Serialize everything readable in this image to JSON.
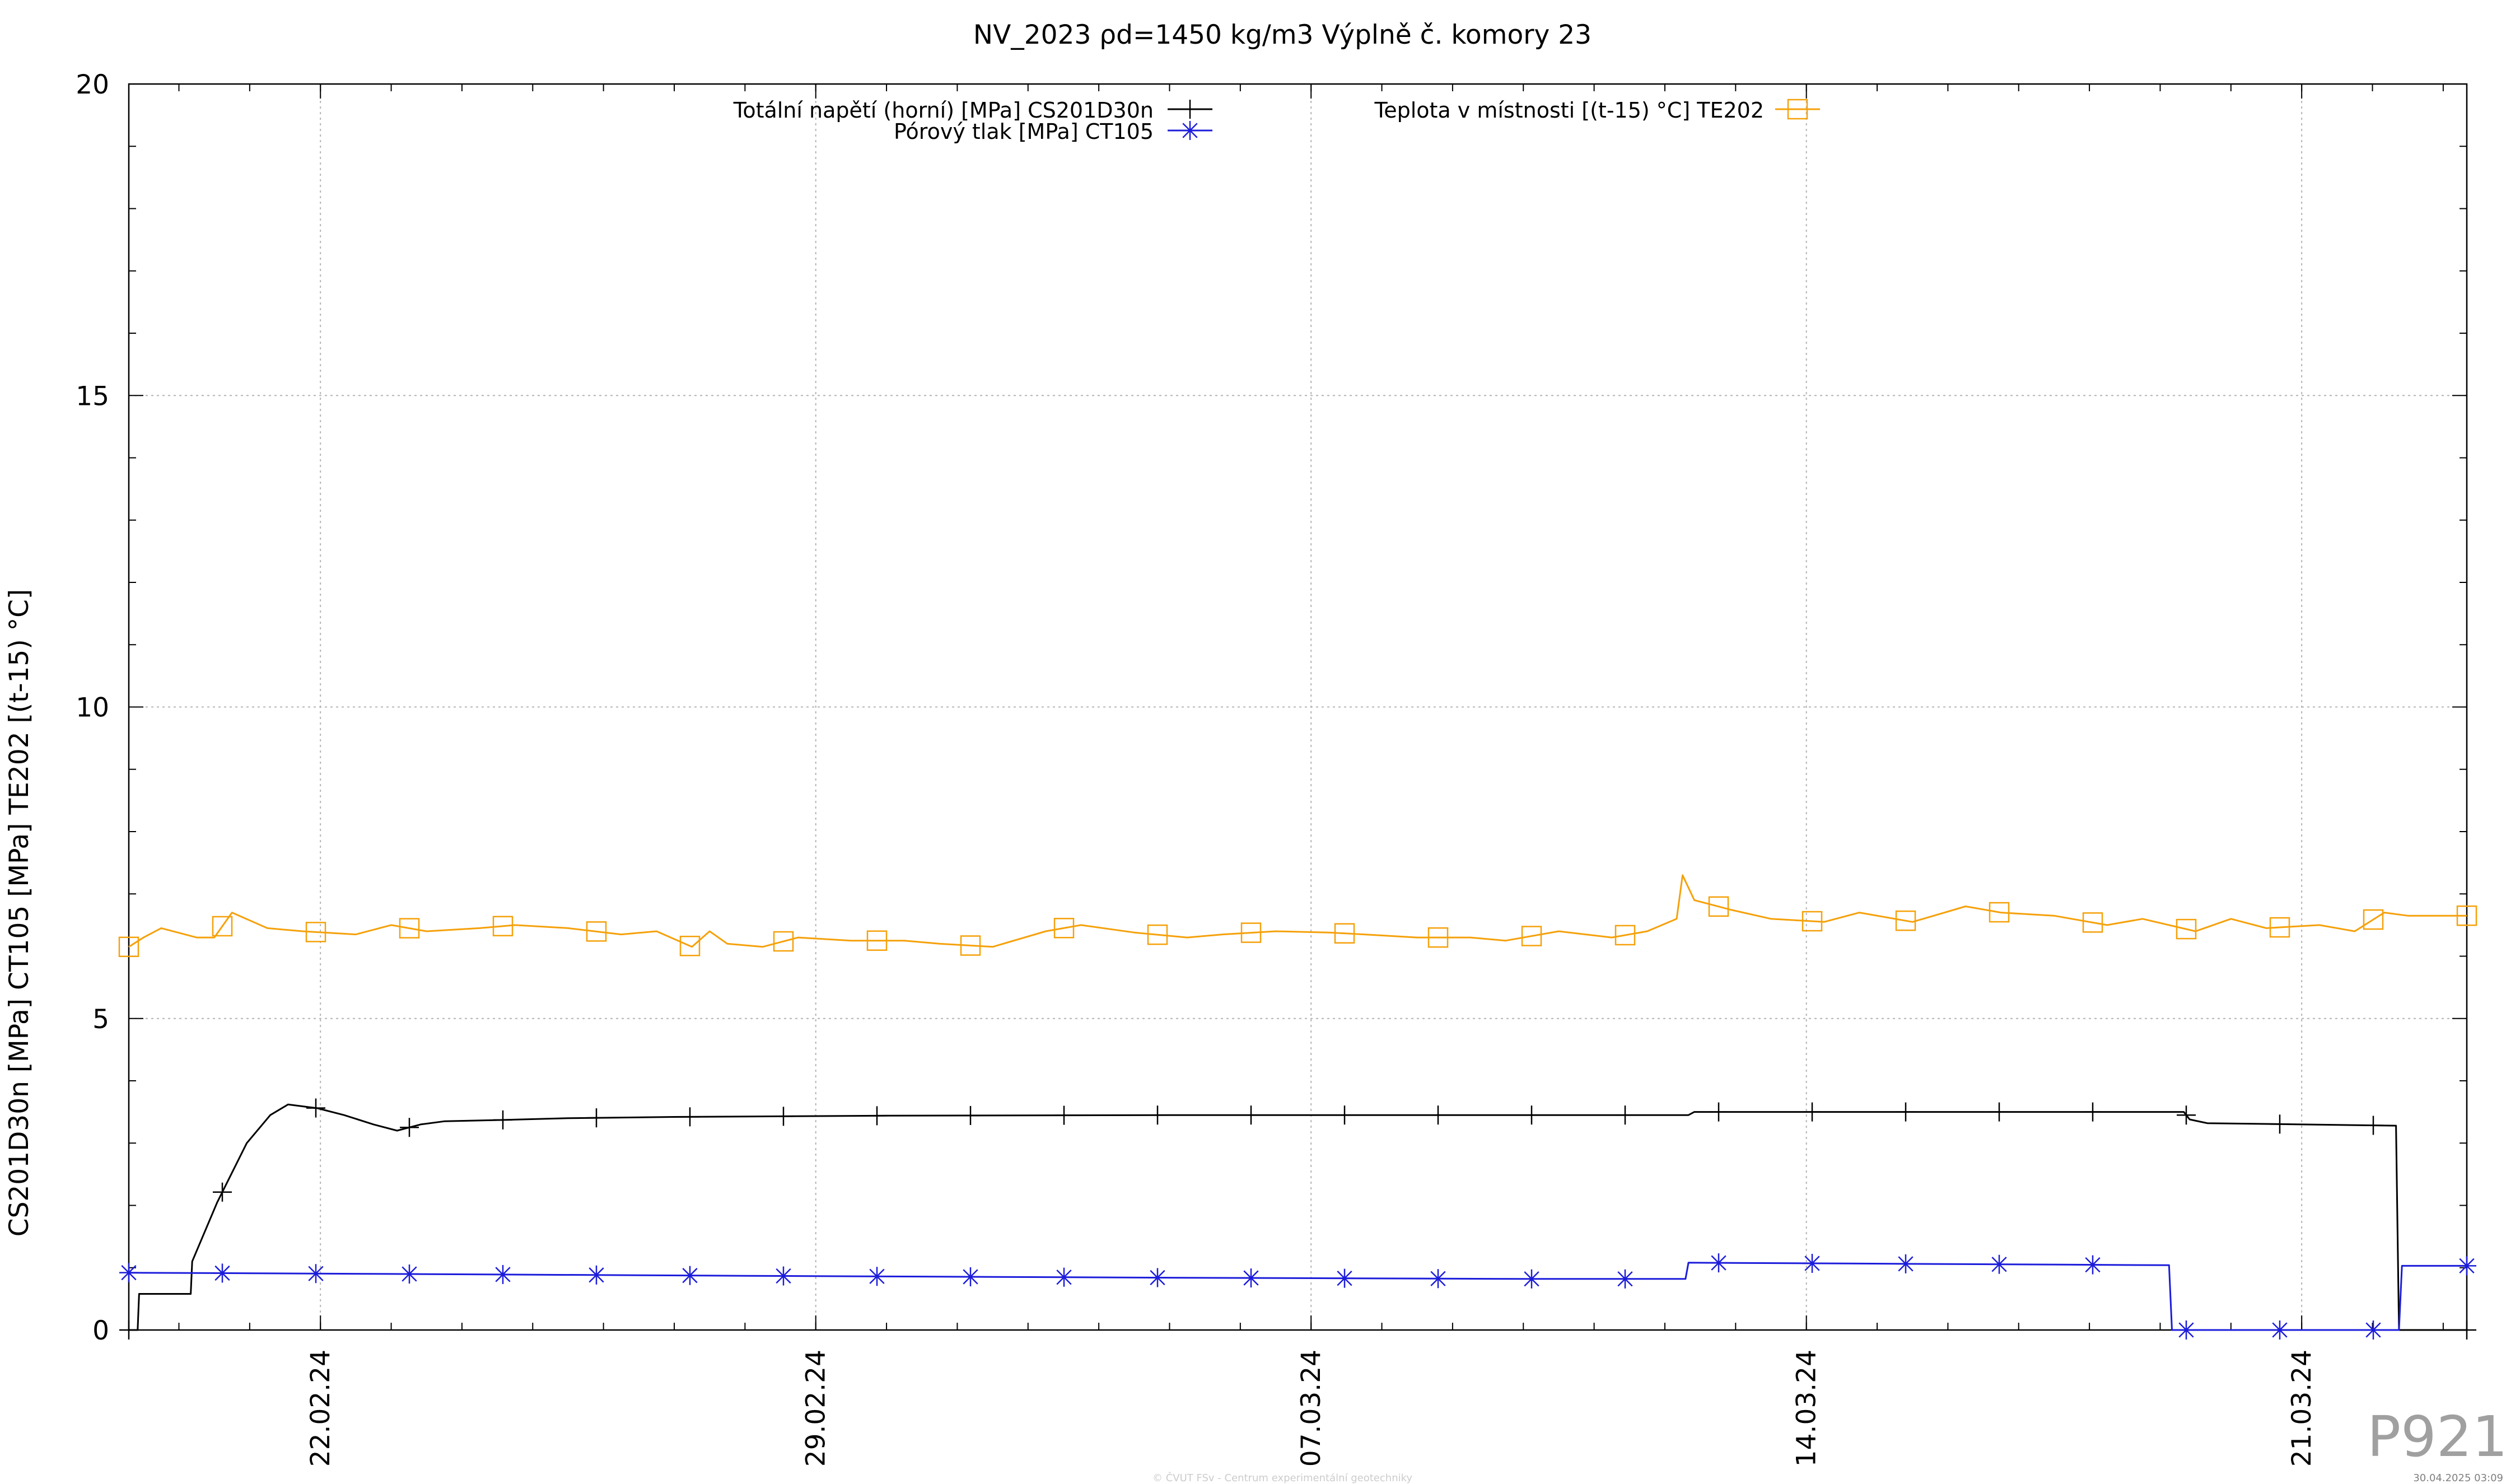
{
  "chart_data": {
    "type": "line",
    "title": "NV_2023 ρd=1450 kg/m3 Výplně č. komory 23",
    "xlabel": "",
    "ylabel": "CS201D30n [MPa] CT105 [MPa] TE202 [(t-15) °C]",
    "xlim": [
      "2024-02-19 07:00",
      "2024-03-23 08:00"
    ],
    "ylim": [
      0,
      20
    ],
    "x_ticks": [
      "22.02.24",
      "29.02.24",
      "07.03.24",
      "14.03.24",
      "21.03.24"
    ],
    "y_ticks": [
      "0",
      "5",
      "10",
      "15",
      "20"
    ],
    "grid": true,
    "legend_position": "top",
    "series": [
      {
        "name": "Totální napětí (horní) [MPa] CS201D30n",
        "color": "#000000",
        "marker": "plus",
        "points": [
          [
            "2024-02-19 07:00",
            0.0
          ],
          [
            "2024-02-19 10:00",
            0.0
          ],
          [
            "2024-02-19 10:30",
            0.58
          ],
          [
            "2024-02-20 04:00",
            0.58
          ],
          [
            "2024-02-20 04:30",
            1.1
          ],
          [
            "2024-02-20 13:00",
            2.05
          ],
          [
            "2024-02-20 23:00",
            3.0
          ],
          [
            "2024-02-21 07:00",
            3.45
          ],
          [
            "2024-02-21 13:00",
            3.62
          ],
          [
            "2024-02-21 23:00",
            3.56
          ],
          [
            "2024-02-22 08:00",
            3.45
          ],
          [
            "2024-02-22 18:00",
            3.3
          ],
          [
            "2024-02-23 02:00",
            3.2
          ],
          [
            "2024-02-23 10:00",
            3.3
          ],
          [
            "2024-02-23 18:00",
            3.35
          ],
          [
            "2024-02-24 12:00",
            3.37
          ],
          [
            "2024-02-25 12:00",
            3.4
          ],
          [
            "2024-02-27 00:00",
            3.42
          ],
          [
            "2024-03-01 00:00",
            3.44
          ],
          [
            "2024-03-05 00:00",
            3.45
          ],
          [
            "2024-03-10 00:00",
            3.45
          ],
          [
            "2024-03-12 08:00",
            3.45
          ],
          [
            "2024-03-12 10:00",
            3.5
          ],
          [
            "2024-03-15 00:00",
            3.5
          ],
          [
            "2024-03-19 08:00",
            3.5
          ],
          [
            "2024-03-19 10:00",
            3.38
          ],
          [
            "2024-03-19 16:00",
            3.32
          ],
          [
            "2024-03-22 08:00",
            3.28
          ],
          [
            "2024-03-22 09:00",
            0.0
          ],
          [
            "2024-03-23 08:00",
            0.0
          ]
        ]
      },
      {
        "name": "Pórový tlak [MPa] CT105",
        "color": "#1c1cdb",
        "marker": "star",
        "points": [
          [
            "2024-02-19 07:00",
            0.92
          ],
          [
            "2024-02-23 00:00",
            0.9
          ],
          [
            "2024-02-28 00:00",
            0.87
          ],
          [
            "2024-03-05 00:00",
            0.84
          ],
          [
            "2024-03-10 00:00",
            0.82
          ],
          [
            "2024-03-12 07:00",
            0.82
          ],
          [
            "2024-03-12 08:00",
            1.08
          ],
          [
            "2024-03-19 03:00",
            1.04
          ],
          [
            "2024-03-19 04:00",
            0.0
          ],
          [
            "2024-03-22 09:00",
            0.0
          ],
          [
            "2024-03-22 10:00",
            1.03
          ],
          [
            "2024-03-23 08:00",
            1.03
          ]
        ]
      },
      {
        "name": "Teplota v místnosti [(t-15) °C] TE202",
        "color": "#f5a10a",
        "marker": "square",
        "points": [
          [
            "2024-02-19 07:00",
            6.15
          ],
          [
            "2024-02-19 12:00",
            6.3
          ],
          [
            "2024-02-19 18:00",
            6.45
          ],
          [
            "2024-02-20 06:00",
            6.3
          ],
          [
            "2024-02-20 12:00",
            6.3
          ],
          [
            "2024-02-20 18:00",
            6.7
          ],
          [
            "2024-02-21 06:00",
            6.45
          ],
          [
            "2024-02-21 18:00",
            6.4
          ],
          [
            "2024-02-22 12:00",
            6.35
          ],
          [
            "2024-02-23 00:00",
            6.5
          ],
          [
            "2024-02-23 12:00",
            6.4
          ],
          [
            "2024-02-24 06:00",
            6.45
          ],
          [
            "2024-02-24 18:00",
            6.5
          ],
          [
            "2024-02-25 12:00",
            6.45
          ],
          [
            "2024-02-26 06:00",
            6.35
          ],
          [
            "2024-02-26 18:00",
            6.4
          ],
          [
            "2024-02-27 06:00",
            6.15
          ],
          [
            "2024-02-27 12:00",
            6.4
          ],
          [
            "2024-02-27 18:00",
            6.2
          ],
          [
            "2024-02-28 06:00",
            6.15
          ],
          [
            "2024-02-28 18:00",
            6.3
          ],
          [
            "2024-02-29 12:00",
            6.25
          ],
          [
            "2024-03-01 06:00",
            6.25
          ],
          [
            "2024-03-01 18:00",
            6.2
          ],
          [
            "2024-03-02 12:00",
            6.15
          ],
          [
            "2024-03-03 06:00",
            6.4
          ],
          [
            "2024-03-03 18:00",
            6.5
          ],
          [
            "2024-03-04 12:00",
            6.38
          ],
          [
            "2024-03-05 06:00",
            6.3
          ],
          [
            "2024-03-05 18:00",
            6.35
          ],
          [
            "2024-03-06 12:00",
            6.4
          ],
          [
            "2024-03-07 06:00",
            6.38
          ],
          [
            "2024-03-07 18:00",
            6.35
          ],
          [
            "2024-03-08 12:00",
            6.3
          ],
          [
            "2024-03-09 06:00",
            6.3
          ],
          [
            "2024-03-09 18:00",
            6.25
          ],
          [
            "2024-03-10 12:00",
            6.4
          ],
          [
            "2024-03-11 06:00",
            6.3
          ],
          [
            "2024-03-11 18:00",
            6.4
          ],
          [
            "2024-03-12 04:00",
            6.6
          ],
          [
            "2024-03-12 06:00",
            7.3
          ],
          [
            "2024-03-12 10:00",
            6.9
          ],
          [
            "2024-03-12 22:00",
            6.75
          ],
          [
            "2024-03-13 12:00",
            6.6
          ],
          [
            "2024-03-14 06:00",
            6.55
          ],
          [
            "2024-03-14 18:00",
            6.7
          ],
          [
            "2024-03-15 12:00",
            6.55
          ],
          [
            "2024-03-16 06:00",
            6.8
          ],
          [
            "2024-03-16 18:00",
            6.7
          ],
          [
            "2024-03-17 12:00",
            6.65
          ],
          [
            "2024-03-18 06:00",
            6.5
          ],
          [
            "2024-03-18 18:00",
            6.6
          ],
          [
            "2024-03-19 12:00",
            6.4
          ],
          [
            "2024-03-20 00:00",
            6.6
          ],
          [
            "2024-03-20 12:00",
            6.45
          ],
          [
            "2024-03-21 06:00",
            6.5
          ],
          [
            "2024-03-21 18:00",
            6.4
          ],
          [
            "2024-03-22 04:00",
            6.7
          ],
          [
            "2024-03-22 12:00",
            6.65
          ],
          [
            "2024-03-23 08:00",
            6.65
          ]
        ]
      }
    ]
  },
  "footer": {
    "copyright": "© ČVUT FSv - Centrum experimentální geotechniky",
    "timestamp": "30.04.2025 03:09",
    "plot_id": "P921"
  }
}
